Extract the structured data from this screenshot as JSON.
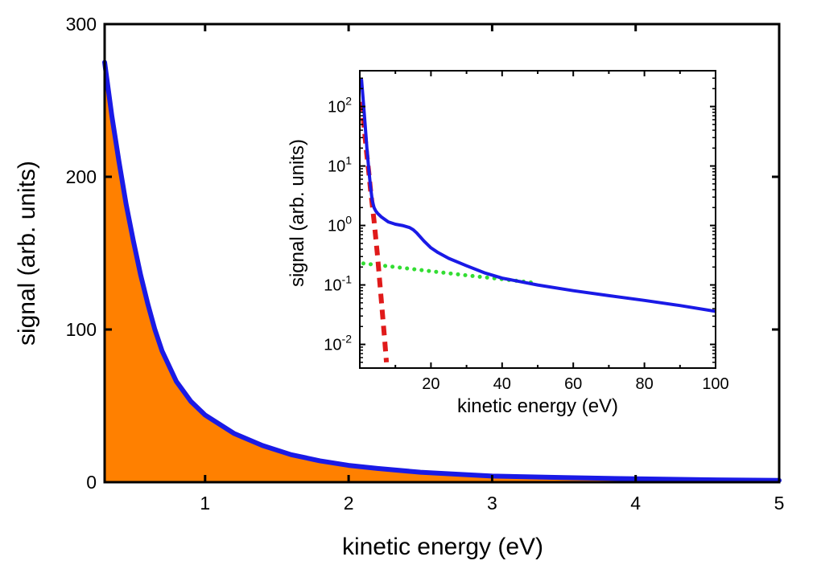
{
  "chart_data": [
    {
      "id": "main",
      "type": "area",
      "xlabel": "kinetic energy (eV)",
      "ylabel": "signal (arb. units)",
      "xlim": [
        0.3,
        5
      ],
      "ylim": [
        0,
        300
      ],
      "x_ticks": [
        1,
        2,
        3,
        4,
        5
      ],
      "y_ticks": [
        0,
        100,
        200,
        300
      ],
      "grid": false,
      "colors": {
        "line": "#1a1ae6",
        "fill": "#ff8000"
      },
      "series": [
        {
          "x": [
            0.3,
            0.35,
            0.4,
            0.45,
            0.5,
            0.55,
            0.6,
            0.65,
            0.7,
            0.8,
            0.9,
            1.0,
            1.2,
            1.4,
            1.6,
            1.8,
            2.0,
            2.2,
            2.5,
            2.8,
            3.0,
            3.5,
            4.0,
            4.5,
            5.0
          ],
          "values": [
            275,
            240,
            210,
            182,
            158,
            136,
            117,
            100,
            86,
            66,
            53,
            44,
            32,
            24,
            18,
            14,
            11,
            9,
            6.5,
            5,
            4,
            3,
            2.2,
            1.6,
            1.2
          ]
        }
      ]
    },
    {
      "id": "inset",
      "type": "line",
      "xlabel": "kinetic energy (eV)",
      "ylabel": "signal (arb. units)",
      "xlim": [
        0,
        100
      ],
      "ylim": [
        0.004,
        400
      ],
      "yscale": "log",
      "x_ticks": [
        20,
        40,
        60,
        80,
        100
      ],
      "y_ticks": [
        {
          "value": 0.01,
          "base": "10",
          "exp": "-2"
        },
        {
          "value": 0.1,
          "base": "10",
          "exp": "-1"
        },
        {
          "value": 1,
          "base": "10",
          "exp": "0"
        },
        {
          "value": 10,
          "base": "10",
          "exp": "1"
        },
        {
          "value": 100,
          "base": "10",
          "exp": "2"
        }
      ],
      "grid": false,
      "series": [
        {
          "style": "solid",
          "color": "#1a1ae6",
          "x": [
            0.5,
            1,
            1.5,
            2,
            2.5,
            3,
            3.5,
            4,
            4.5,
            5,
            6,
            8,
            10,
            12,
            14,
            15,
            16,
            18,
            20,
            22,
            25,
            30,
            35,
            40,
            50,
            60,
            70,
            80,
            90,
            100
          ],
          "values": [
            280,
            120,
            50,
            20,
            9,
            4.5,
            2.6,
            2.0,
            1.75,
            1.6,
            1.4,
            1.15,
            1.05,
            1.0,
            0.92,
            0.85,
            0.75,
            0.55,
            0.42,
            0.35,
            0.28,
            0.21,
            0.16,
            0.13,
            0.1,
            0.08,
            0.066,
            0.055,
            0.045,
            0.036
          ]
        },
        {
          "style": "dashed",
          "color": "#e01a1a",
          "x": [
            0.5,
            1,
            1.5,
            2,
            2.5,
            3,
            3.5,
            4,
            5,
            6,
            7,
            7.5
          ],
          "values": [
            120,
            60,
            30,
            15,
            8,
            4,
            2.2,
            1.2,
            0.3,
            0.06,
            0.012,
            0.005
          ]
        },
        {
          "style": "dotted",
          "color": "#33dd33",
          "x": [
            1,
            10,
            20,
            30,
            40,
            50
          ],
          "values": [
            0.23,
            0.2,
            0.17,
            0.145,
            0.125,
            0.107
          ]
        }
      ]
    }
  ]
}
